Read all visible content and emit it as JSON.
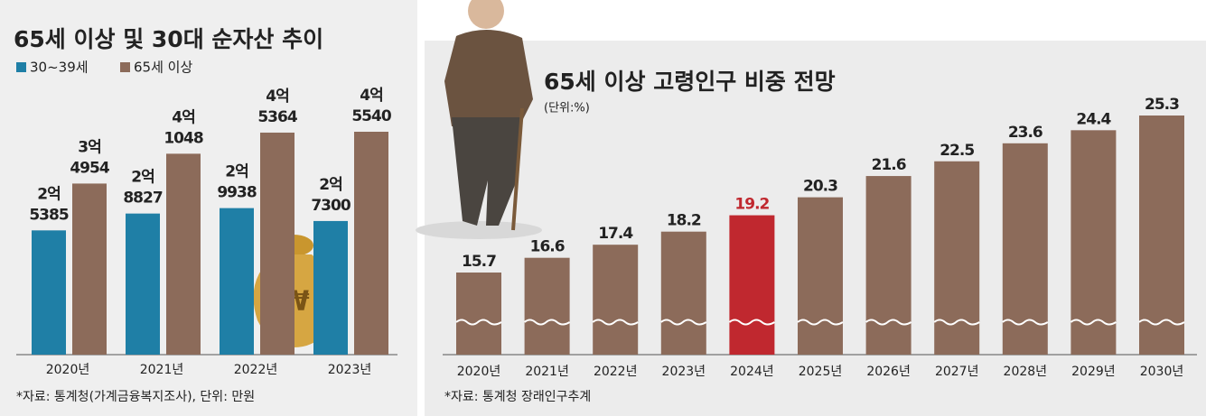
{
  "chart_data": [
    {
      "type": "grouped-bar",
      "title": "65세 이상 및 30대 순자산 추이",
      "categories": [
        "2020년",
        "2021년",
        "2022년",
        "2023년"
      ],
      "series": [
        {
          "name": "30~39세",
          "color": "#1f7fa6",
          "values": [
            25385,
            28827,
            29938,
            27300
          ],
          "value_labels": [
            "2억 5385",
            "2억 8827",
            "2억 9938",
            "2억 7300"
          ]
        },
        {
          "name": "65세 이상",
          "color": "#8c6b5a",
          "values": [
            34954,
            41048,
            45364,
            45540
          ],
          "value_labels": [
            "3억 4954",
            "4억 1048",
            "4억 5364",
            "4억 5540"
          ]
        }
      ],
      "source": "*자료: 통계청(가계금융복지조사), 단위: 만원"
    },
    {
      "type": "bar",
      "title": "65세 이상 고령인구 비중 전망",
      "subtitle": "(단위:%)",
      "categories": [
        "2020년",
        "2021년",
        "2022년",
        "2023년",
        "2024년",
        "2025년",
        "2026년",
        "2027년",
        "2028년",
        "2029년",
        "2030년"
      ],
      "values": [
        15.7,
        16.6,
        17.4,
        18.2,
        19.2,
        20.3,
        21.6,
        22.5,
        23.6,
        24.4,
        25.3
      ],
      "color": "#8c6b5a",
      "highlight_color": "#c0282f",
      "highlight_index": 4,
      "source": "*자료: 통계청 장래인구추계"
    }
  ]
}
